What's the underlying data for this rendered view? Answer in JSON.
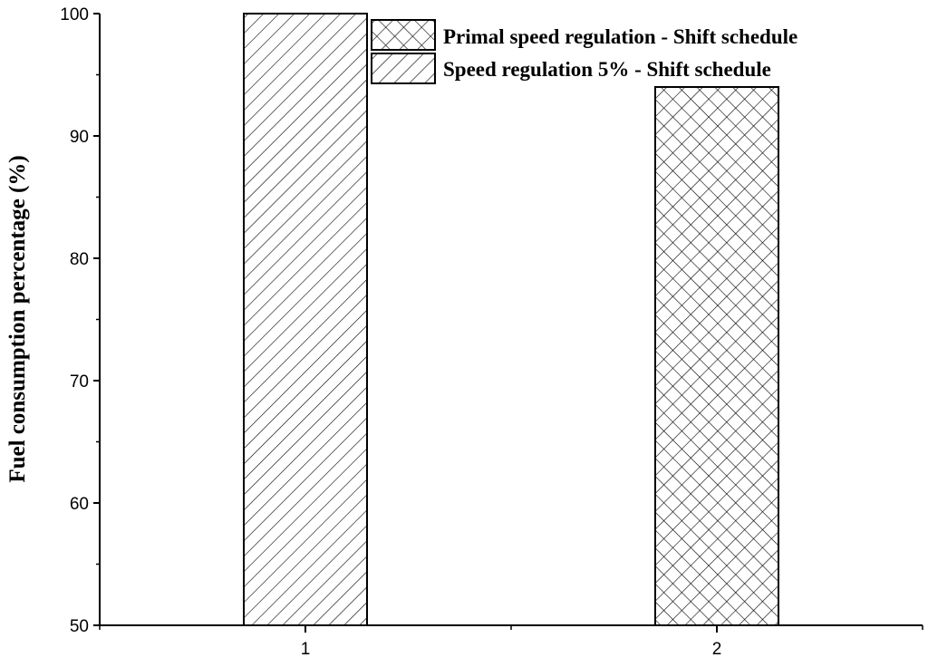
{
  "chart_data": {
    "type": "bar",
    "categories": [
      "1",
      "2"
    ],
    "series": [
      {
        "name": "Speed  regulation 5% - Shift schedule",
        "pattern": "diagonal-hatch",
        "values": [
          100,
          null
        ]
      },
      {
        "name": "Primal speed  regulation - Shift schedule",
        "pattern": "cross-hatch",
        "values": [
          null,
          94
        ]
      }
    ],
    "title": "",
    "xlabel": "",
    "ylabel": "Fuel consumption percentage (%)",
    "ylim": [
      50,
      100
    ],
    "yticks": [
      "50",
      "60",
      "70",
      "80",
      "90",
      "100"
    ],
    "xticks": [
      "1",
      "2"
    ],
    "grid": false,
    "legend": {
      "position": "top-center",
      "order": [
        "Primal speed  regulation - Shift schedule",
        "Speed  regulation 5% - Shift schedule"
      ]
    },
    "colors": {
      "stroke": "#000000",
      "fill": "#ffffff"
    }
  }
}
